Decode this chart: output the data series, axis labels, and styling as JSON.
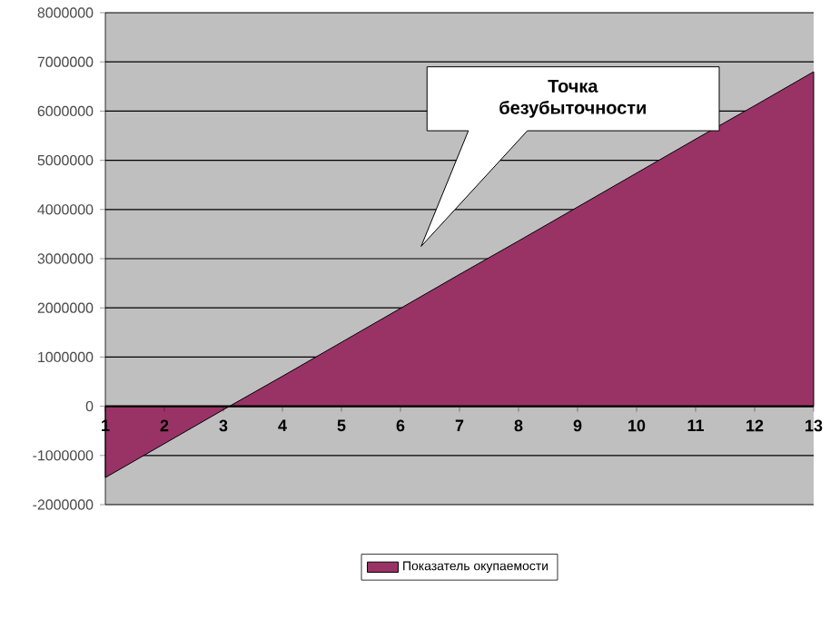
{
  "chart_data": {
    "type": "area",
    "categories": [
      "1",
      "2",
      "3",
      "4",
      "5",
      "6",
      "7",
      "8",
      "9",
      "10",
      "11",
      "12",
      "13"
    ],
    "series": [
      {
        "name": "Показатель окупаемости",
        "color": "#993366",
        "values": [
          -1450000,
          -760000,
          -70000,
          610000,
          1300000,
          1990000,
          2680000,
          3360000,
          4050000,
          4740000,
          5430000,
          6110000,
          6800000
        ]
      }
    ],
    "ylim": [
      -2000000,
      8000000
    ],
    "yticks": [
      -2000000,
      -1000000,
      0,
      1000000,
      2000000,
      3000000,
      4000000,
      5000000,
      6000000,
      7000000,
      8000000
    ],
    "grid": "y",
    "legend": "bottom",
    "annotations": [
      "Точка безубыточности"
    ]
  }
}
